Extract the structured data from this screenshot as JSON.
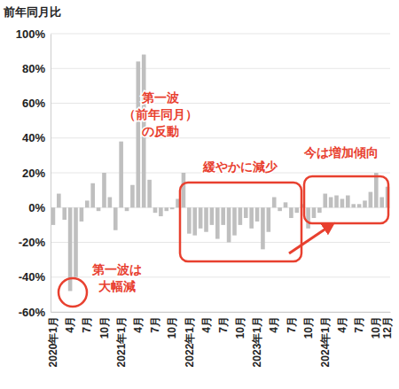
{
  "chart_data": {
    "type": "bar",
    "y_label": "前年同月比",
    "categories": [
      "2020年1月",
      null,
      null,
      "4月",
      null,
      null,
      "7月",
      null,
      null,
      "10月",
      null,
      null,
      "2021年1月",
      null,
      null,
      "4月",
      null,
      null,
      "7月",
      null,
      null,
      "10月",
      null,
      null,
      "2022年1月",
      null,
      null,
      "4月",
      null,
      null,
      "7月",
      null,
      null,
      "10月",
      null,
      null,
      "2023年1月",
      null,
      null,
      "4月",
      null,
      null,
      "7月",
      null,
      null,
      "10月",
      null,
      null,
      "2024年1月",
      null,
      null,
      "4月",
      null,
      null,
      "7月",
      null,
      null,
      "10月",
      null,
      "12月"
    ],
    "values": [
      -10,
      8,
      -7,
      -48,
      -40,
      -8,
      4,
      14,
      -2,
      20,
      6,
      -13,
      38,
      -2,
      13,
      84,
      88,
      16,
      -3,
      -5,
      -2,
      -1,
      5,
      20,
      -15,
      -16,
      -12,
      -14,
      -10,
      -18,
      -10,
      -20,
      -16,
      -10,
      -6,
      -12,
      -8,
      -24,
      -14,
      6,
      -2,
      3,
      -6,
      -3,
      2,
      -12,
      -6,
      -3,
      8,
      6,
      7,
      5,
      7,
      2,
      2,
      4,
      9,
      20,
      6,
      12
    ],
    "color": "#bfbfbf",
    "ylim": [
      -60,
      100
    ],
    "yticks": [
      {
        "value": -60,
        "label": "-60%"
      },
      {
        "value": -40,
        "label": "-40%"
      },
      {
        "value": -20,
        "label": "-20%"
      },
      {
        "value": 0,
        "label": "0%"
      },
      {
        "value": 20,
        "label": "20%"
      },
      {
        "value": 40,
        "label": "40%"
      },
      {
        "value": 60,
        "label": "60%"
      },
      {
        "value": 80,
        "label": "80%"
      },
      {
        "value": 100,
        "label": "100%"
      }
    ],
    "grid": true,
    "annotations": [
      {
        "lines": [
          "第一波は",
          "大幅減"
        ]
      },
      {
        "lines": [
          "第一波",
          "（前年同月）",
          "の反動"
        ]
      },
      {
        "lines": [
          "緩やかに減少"
        ]
      },
      {
        "lines": [
          "今は増加傾向"
        ]
      }
    ]
  }
}
